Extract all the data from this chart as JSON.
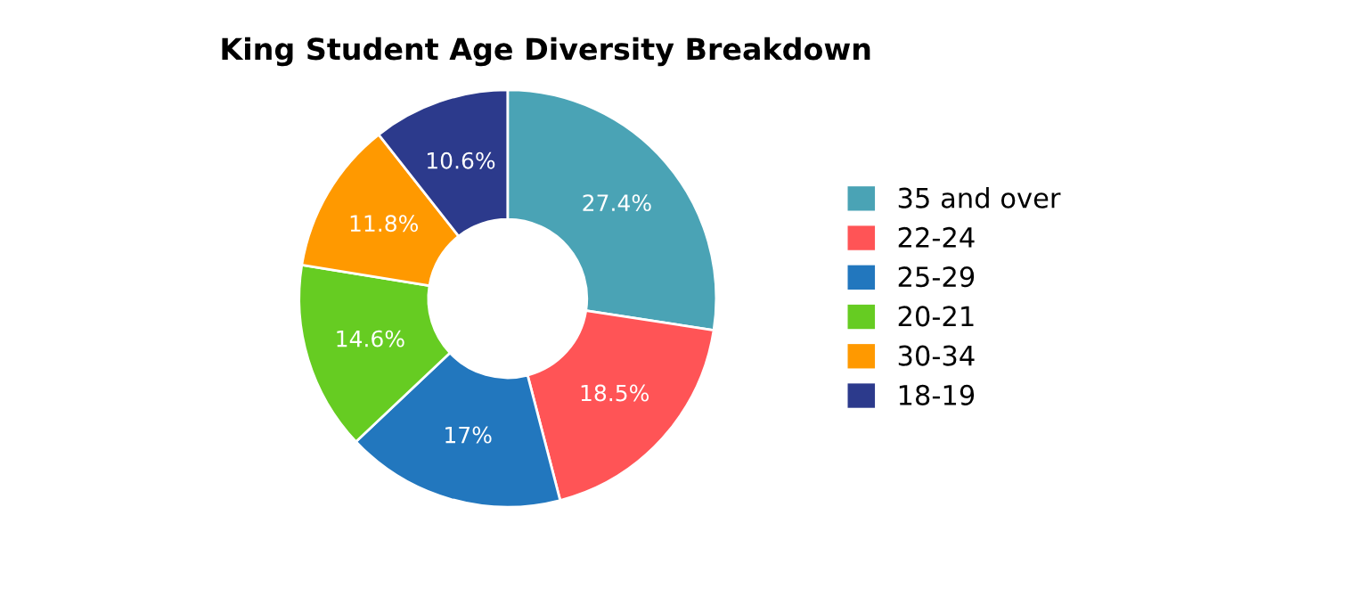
{
  "chart_data": {
    "type": "donut",
    "title": "King Student Age Diversity Breakdown",
    "categories": [
      "35 and over",
      "22-24",
      "25-29",
      "20-21",
      "30-34",
      "18-19"
    ],
    "values": [
      27.4,
      18.5,
      17,
      14.6,
      11.8,
      10.6
    ],
    "value_labels": [
      "27.4%",
      "18.5%",
      "17%",
      "14.6%",
      "11.8%",
      "10.6%"
    ],
    "colors": [
      "#4aa3b5",
      "#ff5456",
      "#2277be",
      "#66cc22",
      "#ff9900",
      "#2c3a8c"
    ],
    "legend": "right"
  }
}
